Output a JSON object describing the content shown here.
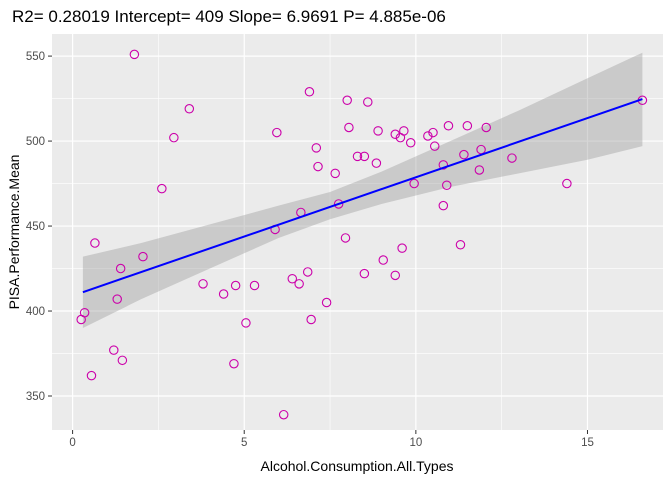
{
  "chart_data": {
    "type": "scatter",
    "title": "R2= 0.28019 Intercept= 409 Slope= 6.9691 P= 4.885e-06",
    "xlabel": "Alcohol.Consumption.All.Types",
    "ylabel": "PISA.Performance.Mean",
    "xlim": [
      -0.6,
      17.2
    ],
    "ylim": [
      330,
      563
    ],
    "x_ticks": [
      0,
      5,
      10,
      15
    ],
    "y_ticks": [
      350,
      400,
      450,
      500,
      550
    ],
    "grid": true,
    "fit": {
      "intercept": 409,
      "slope": 6.9691,
      "x_range": [
        0.3,
        16.6
      ],
      "band": [
        {
          "x": 0.3,
          "lo": 390,
          "hi": 432
        },
        {
          "x": 2.0,
          "lo": 407,
          "hi": 440
        },
        {
          "x": 4.0,
          "lo": 425,
          "hi": 451
        },
        {
          "x": 6.0,
          "lo": 443,
          "hi": 462
        },
        {
          "x": 7.5,
          "lo": 454,
          "hi": 470
        },
        {
          "x": 9.0,
          "lo": 463,
          "hi": 482
        },
        {
          "x": 11.0,
          "lo": 473,
          "hi": 500
        },
        {
          "x": 13.0,
          "lo": 481,
          "hi": 518
        },
        {
          "x": 15.0,
          "lo": 489,
          "hi": 537
        },
        {
          "x": 16.6,
          "lo": 497,
          "hi": 552
        }
      ]
    },
    "series": [
      {
        "point_color": "#cc00aa",
        "line_color": "#0000ff",
        "band_color": "#999999",
        "points": [
          [
            0.25,
            395
          ],
          [
            0.35,
            399
          ],
          [
            0.55,
            362
          ],
          [
            0.65,
            440
          ],
          [
            1.2,
            377
          ],
          [
            1.3,
            407
          ],
          [
            1.4,
            425
          ],
          [
            1.45,
            371
          ],
          [
            1.8,
            551
          ],
          [
            2.05,
            432
          ],
          [
            2.6,
            472
          ],
          [
            2.95,
            502
          ],
          [
            3.4,
            519
          ],
          [
            3.8,
            416
          ],
          [
            4.4,
            410
          ],
          [
            4.7,
            369
          ],
          [
            4.75,
            415
          ],
          [
            5.05,
            393
          ],
          [
            5.3,
            415
          ],
          [
            5.9,
            448
          ],
          [
            5.95,
            505
          ],
          [
            6.15,
            339
          ],
          [
            6.4,
            419
          ],
          [
            6.6,
            416
          ],
          [
            6.65,
            458
          ],
          [
            6.85,
            423
          ],
          [
            6.9,
            529
          ],
          [
            6.95,
            395
          ],
          [
            7.1,
            496
          ],
          [
            7.15,
            485
          ],
          [
            7.4,
            405
          ],
          [
            7.65,
            481
          ],
          [
            7.75,
            463
          ],
          [
            7.95,
            443
          ],
          [
            8.0,
            524
          ],
          [
            8.05,
            508
          ],
          [
            8.3,
            491
          ],
          [
            8.5,
            491
          ],
          [
            8.5,
            422
          ],
          [
            8.6,
            523
          ],
          [
            8.85,
            487
          ],
          [
            8.9,
            506
          ],
          [
            9.05,
            430
          ],
          [
            9.4,
            504
          ],
          [
            9.4,
            421
          ],
          [
            9.55,
            502
          ],
          [
            9.6,
            437
          ],
          [
            9.65,
            506
          ],
          [
            9.85,
            499
          ],
          [
            9.95,
            475
          ],
          [
            10.35,
            503
          ],
          [
            10.5,
            505
          ],
          [
            10.55,
            497
          ],
          [
            10.8,
            486
          ],
          [
            10.8,
            462
          ],
          [
            10.9,
            474
          ],
          [
            10.95,
            509
          ],
          [
            11.3,
            439
          ],
          [
            11.4,
            492
          ],
          [
            11.5,
            509
          ],
          [
            11.85,
            483
          ],
          [
            11.9,
            495
          ],
          [
            12.05,
            508
          ],
          [
            12.8,
            490
          ],
          [
            14.4,
            475
          ],
          [
            16.6,
            524
          ]
        ]
      }
    ]
  }
}
